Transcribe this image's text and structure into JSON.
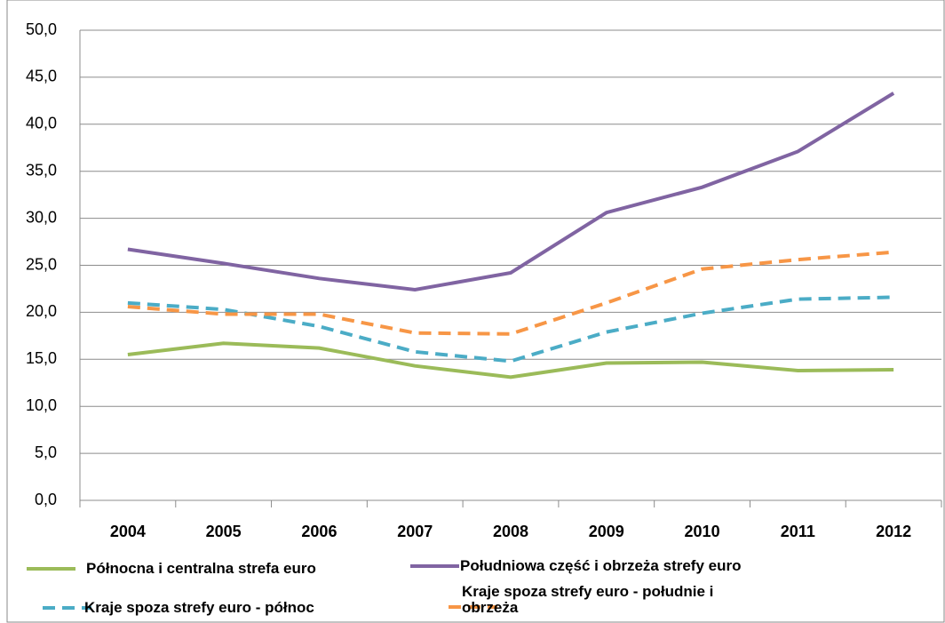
{
  "chart_data": {
    "type": "line",
    "categories": [
      "2004",
      "2005",
      "2006",
      "2007",
      "2008",
      "2009",
      "2010",
      "2011",
      "2012"
    ],
    "series": [
      {
        "name": "Północna i centralna strefa euro",
        "color": "#9bbb59",
        "dashed": false,
        "values": [
          15.5,
          16.7,
          16.2,
          14.3,
          13.1,
          14.6,
          14.7,
          13.8,
          13.9
        ]
      },
      {
        "name": "Południowa część i obrzeża strefy euro",
        "color": "#8064a2",
        "dashed": false,
        "values": [
          26.7,
          25.2,
          23.6,
          22.4,
          24.2,
          30.6,
          33.3,
          37.1,
          43.3
        ]
      },
      {
        "name": "Kraje spoza strefy euro - północ",
        "color": "#4bacc6",
        "dashed": true,
        "values": [
          21.0,
          20.3,
          18.5,
          15.8,
          14.8,
          17.9,
          19.9,
          21.4,
          21.6
        ]
      },
      {
        "name": "Kraje spoza strefy euro - południe i obrzeża",
        "color": "#f79646",
        "dashed": true,
        "values": [
          20.6,
          19.8,
          19.8,
          17.8,
          17.7,
          21.0,
          24.6,
          25.6,
          26.4
        ]
      }
    ],
    "ylim": [
      0,
      50
    ],
    "yticks": [
      {
        "value": 0,
        "label": "0,0"
      },
      {
        "value": 5,
        "label": "5,0"
      },
      {
        "value": 10,
        "label": "10,0"
      },
      {
        "value": 15,
        "label": "15,0"
      },
      {
        "value": 20,
        "label": "20,0"
      },
      {
        "value": 25,
        "label": "25,0"
      },
      {
        "value": 30,
        "label": "30,0"
      },
      {
        "value": 35,
        "label": "35,0"
      },
      {
        "value": 40,
        "label": "40,0"
      },
      {
        "value": 45,
        "label": "45,0"
      },
      {
        "value": 50,
        "label": "50,0"
      }
    ],
    "grid": true
  }
}
